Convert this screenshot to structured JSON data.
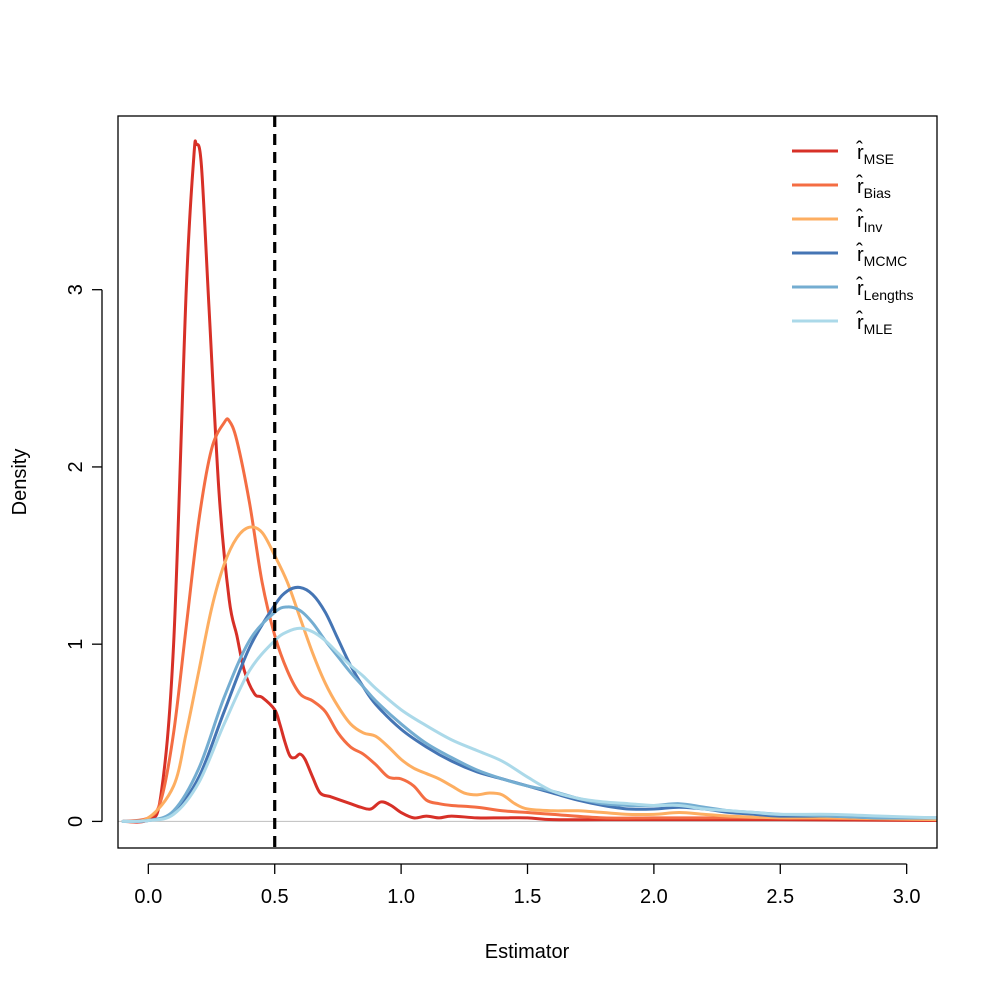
{
  "chart_data": {
    "type": "line",
    "title": "",
    "xlabel": "Estimator",
    "ylabel": "Density",
    "xlim": [
      -0.12,
      3.12
    ],
    "ylim": [
      -0.15,
      3.98
    ],
    "x_ticks": [
      0.0,
      0.5,
      1.0,
      1.5,
      2.0,
      2.5,
      3.0
    ],
    "x_tick_labels": [
      "0.0",
      "0.5",
      "1.0",
      "1.5",
      "2.0",
      "2.5",
      "3.0"
    ],
    "y_ticks": [
      0,
      1,
      2,
      3
    ],
    "y_tick_labels": [
      "0",
      "1",
      "2",
      "3"
    ],
    "grid": false,
    "legend_position": "top-right",
    "reference_line": {
      "orientation": "vertical",
      "x": 0.5,
      "style": "dashed",
      "color": "#000000"
    },
    "baseline": {
      "y": 0,
      "color": "#bebebe"
    },
    "series": [
      {
        "name": "MSE",
        "legend_base": "r̂",
        "legend_sub": "MSE",
        "color": "#d73027",
        "points": [
          [
            -0.1,
            0
          ],
          [
            0,
            0.01
          ],
          [
            0.05,
            0.15
          ],
          [
            0.1,
            1.0
          ],
          [
            0.15,
            3.0
          ],
          [
            0.18,
            3.75
          ],
          [
            0.19,
            3.82
          ],
          [
            0.21,
            3.7
          ],
          [
            0.24,
            2.9
          ],
          [
            0.28,
            1.85
          ],
          [
            0.32,
            1.25
          ],
          [
            0.35,
            1.05
          ],
          [
            0.38,
            0.85
          ],
          [
            0.42,
            0.72
          ],
          [
            0.45,
            0.7
          ],
          [
            0.5,
            0.63
          ],
          [
            0.52,
            0.55
          ],
          [
            0.54,
            0.45
          ],
          [
            0.56,
            0.37
          ],
          [
            0.58,
            0.36
          ],
          [
            0.6,
            0.38
          ],
          [
            0.62,
            0.35
          ],
          [
            0.65,
            0.25
          ],
          [
            0.68,
            0.16
          ],
          [
            0.72,
            0.14
          ],
          [
            0.76,
            0.12
          ],
          [
            0.8,
            0.1
          ],
          [
            0.84,
            0.08
          ],
          [
            0.88,
            0.07
          ],
          [
            0.92,
            0.11
          ],
          [
            0.96,
            0.09
          ],
          [
            1.0,
            0.05
          ],
          [
            1.05,
            0.02
          ],
          [
            1.1,
            0.03
          ],
          [
            1.15,
            0.02
          ],
          [
            1.2,
            0.03
          ],
          [
            1.3,
            0.02
          ],
          [
            1.4,
            0.02
          ],
          [
            1.5,
            0.02
          ],
          [
            1.6,
            0.01
          ],
          [
            1.8,
            0.01
          ],
          [
            2.0,
            0.01
          ],
          [
            2.2,
            0.01
          ],
          [
            2.5,
            0.01
          ],
          [
            3.12,
            0.005
          ]
        ]
      },
      {
        "name": "Bias",
        "legend_base": "r̂",
        "legend_sub": "Bias",
        "color": "#f46d43",
        "points": [
          [
            -0.1,
            0
          ],
          [
            0,
            0.02
          ],
          [
            0.05,
            0.12
          ],
          [
            0.1,
            0.5
          ],
          [
            0.15,
            1.1
          ],
          [
            0.2,
            1.7
          ],
          [
            0.25,
            2.1
          ],
          [
            0.3,
            2.25
          ],
          [
            0.32,
            2.26
          ],
          [
            0.35,
            2.15
          ],
          [
            0.4,
            1.8
          ],
          [
            0.45,
            1.35
          ],
          [
            0.5,
            1.05
          ],
          [
            0.55,
            0.85
          ],
          [
            0.6,
            0.72
          ],
          [
            0.65,
            0.68
          ],
          [
            0.7,
            0.62
          ],
          [
            0.75,
            0.5
          ],
          [
            0.8,
            0.42
          ],
          [
            0.85,
            0.38
          ],
          [
            0.9,
            0.32
          ],
          [
            0.95,
            0.25
          ],
          [
            1.0,
            0.24
          ],
          [
            1.05,
            0.2
          ],
          [
            1.1,
            0.12
          ],
          [
            1.15,
            0.1
          ],
          [
            1.2,
            0.09
          ],
          [
            1.3,
            0.08
          ],
          [
            1.4,
            0.06
          ],
          [
            1.5,
            0.05
          ],
          [
            1.6,
            0.04
          ],
          [
            1.8,
            0.02
          ],
          [
            2.0,
            0.02
          ],
          [
            2.2,
            0.02
          ],
          [
            2.5,
            0.02
          ],
          [
            3.12,
            0.01
          ]
        ]
      },
      {
        "name": "Inv",
        "legend_base": "r̂",
        "legend_sub": "Inv",
        "color": "#fdae61",
        "points": [
          [
            -0.1,
            0
          ],
          [
            0,
            0.02
          ],
          [
            0.1,
            0.2
          ],
          [
            0.15,
            0.5
          ],
          [
            0.2,
            0.85
          ],
          [
            0.25,
            1.2
          ],
          [
            0.3,
            1.45
          ],
          [
            0.35,
            1.6
          ],
          [
            0.4,
            1.66
          ],
          [
            0.45,
            1.63
          ],
          [
            0.5,
            1.5
          ],
          [
            0.55,
            1.35
          ],
          [
            0.6,
            1.15
          ],
          [
            0.65,
            0.95
          ],
          [
            0.7,
            0.78
          ],
          [
            0.75,
            0.65
          ],
          [
            0.8,
            0.55
          ],
          [
            0.85,
            0.5
          ],
          [
            0.9,
            0.48
          ],
          [
            0.95,
            0.42
          ],
          [
            1.0,
            0.35
          ],
          [
            1.05,
            0.3
          ],
          [
            1.1,
            0.27
          ],
          [
            1.15,
            0.24
          ],
          [
            1.2,
            0.2
          ],
          [
            1.25,
            0.16
          ],
          [
            1.3,
            0.15
          ],
          [
            1.35,
            0.16
          ],
          [
            1.4,
            0.15
          ],
          [
            1.45,
            0.1
          ],
          [
            1.5,
            0.07
          ],
          [
            1.6,
            0.06
          ],
          [
            1.7,
            0.06
          ],
          [
            1.8,
            0.05
          ],
          [
            1.9,
            0.04
          ],
          [
            2.0,
            0.04
          ],
          [
            2.1,
            0.05
          ],
          [
            2.2,
            0.04
          ],
          [
            2.3,
            0.03
          ],
          [
            2.5,
            0.02
          ],
          [
            2.7,
            0.02
          ],
          [
            3.12,
            0.01
          ]
        ]
      },
      {
        "name": "MCMC",
        "legend_base": "r̂",
        "legend_sub": "MCMC",
        "color": "#4575b4",
        "points": [
          [
            -0.1,
            0
          ],
          [
            0,
            0.005
          ],
          [
            0.1,
            0.05
          ],
          [
            0.2,
            0.25
          ],
          [
            0.3,
            0.62
          ],
          [
            0.4,
            0.98
          ],
          [
            0.5,
            1.22
          ],
          [
            0.55,
            1.3
          ],
          [
            0.6,
            1.32
          ],
          [
            0.65,
            1.28
          ],
          [
            0.7,
            1.18
          ],
          [
            0.75,
            1.03
          ],
          [
            0.8,
            0.88
          ],
          [
            0.85,
            0.76
          ],
          [
            0.9,
            0.66
          ],
          [
            1.0,
            0.52
          ],
          [
            1.1,
            0.42
          ],
          [
            1.2,
            0.34
          ],
          [
            1.3,
            0.28
          ],
          [
            1.4,
            0.24
          ],
          [
            1.5,
            0.2
          ],
          [
            1.6,
            0.16
          ],
          [
            1.7,
            0.12
          ],
          [
            1.8,
            0.09
          ],
          [
            1.9,
            0.07
          ],
          [
            2.0,
            0.07
          ],
          [
            2.1,
            0.08
          ],
          [
            2.2,
            0.07
          ],
          [
            2.3,
            0.05
          ],
          [
            2.4,
            0.04
          ],
          [
            2.5,
            0.03
          ],
          [
            2.7,
            0.03
          ],
          [
            2.9,
            0.02
          ],
          [
            3.12,
            0.02
          ]
        ]
      },
      {
        "name": "Lengths",
        "legend_base": "r̂",
        "legend_sub": "Lengths",
        "color": "#74add1",
        "points": [
          [
            -0.1,
            0
          ],
          [
            0,
            0.005
          ],
          [
            0.1,
            0.06
          ],
          [
            0.2,
            0.3
          ],
          [
            0.3,
            0.7
          ],
          [
            0.4,
            1.02
          ],
          [
            0.5,
            1.18
          ],
          [
            0.55,
            1.21
          ],
          [
            0.6,
            1.19
          ],
          [
            0.65,
            1.12
          ],
          [
            0.7,
            1.02
          ],
          [
            0.75,
            0.93
          ],
          [
            0.8,
            0.84
          ],
          [
            0.85,
            0.76
          ],
          [
            0.9,
            0.68
          ],
          [
            1.0,
            0.55
          ],
          [
            1.1,
            0.44
          ],
          [
            1.2,
            0.36
          ],
          [
            1.3,
            0.29
          ],
          [
            1.4,
            0.24
          ],
          [
            1.5,
            0.2
          ],
          [
            1.6,
            0.17
          ],
          [
            1.7,
            0.13
          ],
          [
            1.8,
            0.1
          ],
          [
            1.9,
            0.09
          ],
          [
            2.0,
            0.09
          ],
          [
            2.1,
            0.1
          ],
          [
            2.2,
            0.08
          ],
          [
            2.3,
            0.06
          ],
          [
            2.4,
            0.05
          ],
          [
            2.5,
            0.04
          ],
          [
            2.7,
            0.03
          ],
          [
            2.9,
            0.02
          ],
          [
            3.12,
            0.02
          ]
        ]
      },
      {
        "name": "MLE",
        "legend_base": "r̂",
        "legend_sub": "MLE",
        "color": "#abd9e9",
        "points": [
          [
            -0.1,
            0
          ],
          [
            0,
            0.005
          ],
          [
            0.1,
            0.04
          ],
          [
            0.2,
            0.22
          ],
          [
            0.3,
            0.55
          ],
          [
            0.4,
            0.85
          ],
          [
            0.5,
            1.02
          ],
          [
            0.55,
            1.07
          ],
          [
            0.6,
            1.09
          ],
          [
            0.65,
            1.07
          ],
          [
            0.7,
            1.02
          ],
          [
            0.75,
            0.95
          ],
          [
            0.8,
            0.88
          ],
          [
            0.85,
            0.82
          ],
          [
            0.9,
            0.75
          ],
          [
            1.0,
            0.63
          ],
          [
            1.1,
            0.54
          ],
          [
            1.2,
            0.46
          ],
          [
            1.3,
            0.4
          ],
          [
            1.4,
            0.34
          ],
          [
            1.5,
            0.25
          ],
          [
            1.6,
            0.17
          ],
          [
            1.7,
            0.13
          ],
          [
            1.8,
            0.11
          ],
          [
            1.9,
            0.1
          ],
          [
            2.0,
            0.09
          ],
          [
            2.1,
            0.09
          ],
          [
            2.2,
            0.07
          ],
          [
            2.3,
            0.06
          ],
          [
            2.4,
            0.05
          ],
          [
            2.5,
            0.04
          ],
          [
            2.7,
            0.04
          ],
          [
            2.9,
            0.03
          ],
          [
            3.12,
            0.02
          ]
        ]
      }
    ]
  }
}
